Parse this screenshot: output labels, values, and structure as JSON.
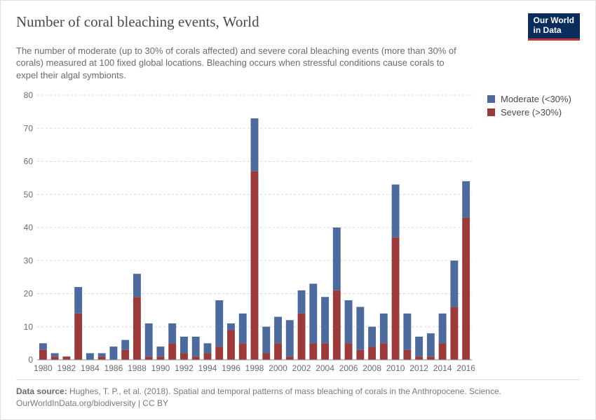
{
  "header": {
    "title": "Number of coral bleaching events, World",
    "subtitle": "The number of moderate (up to 30% of corals affected) and severe coral bleaching events (more than 30% of corals) measured at 100 fixed global locations. Bleaching occurs when stressful conditions cause corals to expel their algal symbionts.",
    "logo_line1": "Our World",
    "logo_line2": "in Data"
  },
  "legend": {
    "items": [
      {
        "label": "Moderate (<30%)",
        "color": "#4c6a9c"
      },
      {
        "label": "Severe (>30%)",
        "color": "#9b3a3a"
      }
    ]
  },
  "chart": {
    "type": "stacked-bar",
    "ylim": [
      0,
      80
    ],
    "yticks": [
      0,
      10,
      20,
      30,
      40,
      50,
      60,
      70,
      80
    ],
    "xtick_step": 2,
    "xtick_start": 1980,
    "colors": {
      "moderate": "#4c6a9c",
      "severe": "#9b3a3a"
    },
    "background_color": "#ffffff",
    "grid_color": "#d8d8d8",
    "axis_color": "#888888",
    "label_color": "#6b6b6b",
    "label_fontsize": 12,
    "bar_gap_ratio": 0.35,
    "years": [
      1980,
      1981,
      1982,
      1983,
      1984,
      1985,
      1986,
      1987,
      1988,
      1989,
      1990,
      1991,
      1992,
      1993,
      1994,
      1995,
      1996,
      1997,
      1998,
      1999,
      2000,
      2001,
      2002,
      2003,
      2004,
      2005,
      2006,
      2007,
      2008,
      2009,
      2010,
      2011,
      2012,
      2013,
      2014,
      2015,
      2016
    ],
    "severe": [
      3,
      1,
      1,
      14,
      0,
      1,
      0,
      3,
      19,
      1,
      1,
      5,
      2,
      1,
      2,
      4,
      9,
      5,
      57,
      2,
      5,
      1,
      14,
      5,
      5,
      21,
      5,
      3,
      4,
      5,
      37,
      3,
      1,
      1,
      5,
      16,
      43
    ],
    "moderate": [
      2,
      1,
      0,
      8,
      2,
      1,
      4,
      3,
      7,
      10,
      3,
      6,
      5,
      6,
      3,
      14,
      2,
      9,
      16,
      8,
      8,
      11,
      7,
      18,
      14,
      19,
      13,
      13,
      6,
      9,
      16,
      11,
      6,
      7,
      9,
      14,
      11
    ]
  },
  "footer": {
    "source_label": "Data source:",
    "source_text": "Hughes, T. P., et al. (2018). Spatial and temporal patterns of mass bleaching of corals in the Anthropocene. Science.",
    "attribution": "OurWorldInData.org/biodiversity | CC BY"
  }
}
